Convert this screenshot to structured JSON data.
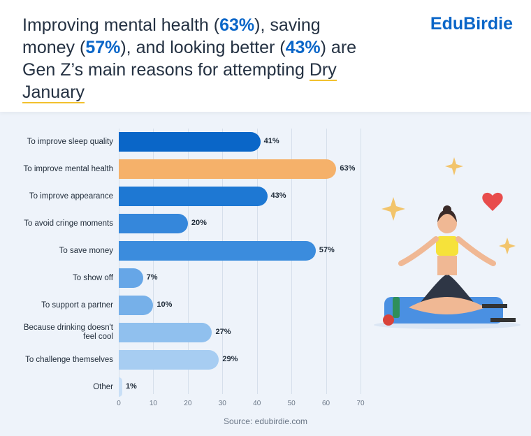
{
  "header": {
    "title_segments": [
      "Improving mental health (",
      "63%",
      "), saving money (",
      "57%",
      "), and looking better (",
      "43%",
      ") are Gen Z’s main reasons for attempting ",
      "Dry January"
    ],
    "logo": "EduBirdie"
  },
  "chart_data": {
    "type": "bar",
    "orientation": "horizontal",
    "categories": [
      "To improve sleep quality",
      "To improve mental health",
      "To improve appearance",
      "To avoid cringe moments",
      "To save money",
      "To show off",
      "To support a partner",
      "Because drinking doesn't feel cool",
      "To challenge themselves",
      "Other"
    ],
    "values": [
      41,
      63,
      43,
      20,
      57,
      7,
      10,
      27,
      29,
      1
    ],
    "value_labels": [
      "41%",
      "63%",
      "43%",
      "20%",
      "57%",
      "7%",
      "10%",
      "27%",
      "29%",
      "1%"
    ],
    "colors": [
      "#0a66c8",
      "#f5b16a",
      "#1e78d3",
      "#3587db",
      "#3b8cdd",
      "#66a6e7",
      "#76b0e9",
      "#90c0ee",
      "#a7cdf2",
      "#c9dff6"
    ],
    "xlim": [
      0,
      70
    ],
    "xticks": [
      0,
      10,
      20,
      30,
      40,
      50,
      60,
      70
    ],
    "grid": true
  },
  "source": "Source: edubirdie.com"
}
